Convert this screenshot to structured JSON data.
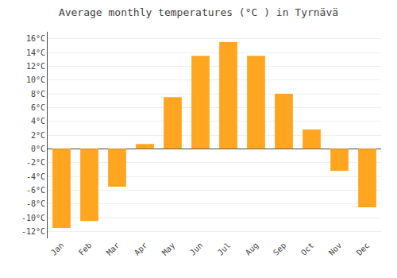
{
  "chart_data": {
    "type": "bar",
    "title": "Average monthly temperatures (°C ) in Tyrnävä",
    "categories": [
      "Jan",
      "Feb",
      "Mar",
      "Apr",
      "May",
      "Jun",
      "Jul",
      "Aug",
      "Sep",
      "Oct",
      "Nov",
      "Dec"
    ],
    "values": [
      -11.5,
      -10.5,
      -5.5,
      0.7,
      7.5,
      13.5,
      15.5,
      13.5,
      8.0,
      2.8,
      -3.2,
      -8.5
    ],
    "color": "#FFA520",
    "ylim": [
      -13,
      17
    ],
    "yticks": [
      {
        "value": -12,
        "label": "-12°C"
      },
      {
        "value": -10,
        "label": "-10°C"
      },
      {
        "value": -8,
        "label": "-8°C"
      },
      {
        "value": -6,
        "label": "-6°C"
      },
      {
        "value": -4,
        "label": "-4°C"
      },
      {
        "value": -2,
        "label": "-2°C"
      },
      {
        "value": 0,
        "label": "0°C"
      },
      {
        "value": 2,
        "label": "2°C"
      },
      {
        "value": 4,
        "label": "4°C"
      },
      {
        "value": 6,
        "label": "6°C"
      },
      {
        "value": 8,
        "label": "8°C"
      },
      {
        "value": 10,
        "label": "10°C"
      },
      {
        "value": 12,
        "label": "12°C"
      },
      {
        "value": 14,
        "label": "14°C"
      },
      {
        "value": 16,
        "label": "16°C"
      }
    ],
    "grid": true
  }
}
